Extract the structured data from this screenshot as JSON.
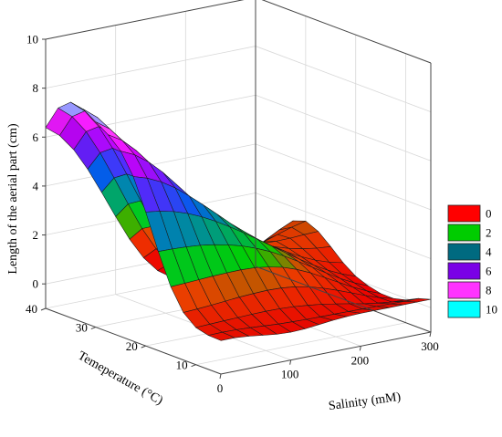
{
  "chart_data": {
    "type": "surface3d",
    "title": "",
    "axes": {
      "x": {
        "label": "Salinity (mM)",
        "ticks": [
          "0",
          "100",
          "200",
          "300"
        ],
        "range": [
          0,
          300
        ]
      },
      "y": {
        "label": "Temeperature (°C)",
        "ticks": [
          "10",
          "20",
          "30",
          "40"
        ],
        "range": [
          5,
          40
        ]
      },
      "z": {
        "label": "Length of the aerial part (cm)",
        "ticks": [
          "0",
          "2",
          "4",
          "6",
          "8",
          "10"
        ],
        "range": [
          -1,
          10
        ]
      }
    },
    "grid": true,
    "legend": {
      "placement": "right",
      "entries": [
        {
          "label": "0",
          "color": "#ff0000"
        },
        {
          "label": "2",
          "color": "#00cc00"
        },
        {
          "label": "4",
          "color": "#006a80"
        },
        {
          "label": "6",
          "color": "#7a00e6"
        },
        {
          "label": "8",
          "color": "#ff33ff"
        },
        {
          "label": "10",
          "color": "#00ffff"
        }
      ]
    },
    "surface": {
      "salinity_mM": [
        0,
        20,
        40,
        60,
        80,
        100,
        120,
        140,
        160,
        180,
        200,
        220,
        240,
        260,
        280,
        300
      ],
      "temperature_C": [
        5,
        7.5,
        10,
        12.5,
        15,
        17.5,
        20,
        22.5,
        25,
        27.5,
        30,
        32.5,
        35,
        37.5,
        40
      ],
      "length_cm": [
        [
          0.37,
          0.37,
          0.32,
          0.24,
          0.17,
          0.14,
          0.16,
          0.22,
          0.28,
          0.32,
          0.34,
          0.34,
          0.34,
          0.34,
          0.34,
          0.34
        ],
        [
          0.39,
          0.4,
          0.39,
          0.36,
          0.32,
          0.28,
          0.26,
          0.24,
          0.23,
          0.23,
          0.22,
          0.21,
          0.2,
          0.19,
          0.18,
          0.18
        ],
        [
          0.52,
          0.54,
          0.56,
          0.58,
          0.6,
          0.61,
          0.6,
          0.57,
          0.51,
          0.44,
          0.34,
          0.23,
          0.12,
          0.03,
          -0.04,
          -0.07
        ],
        [
          0.94,
          0.97,
          1.01,
          1.06,
          1.11,
          1.14,
          1.16,
          1.14,
          1.08,
          0.96,
          0.79,
          0.59,
          0.37,
          0.15,
          -0.05,
          -0.2
        ],
        [
          1.8,
          1.83,
          1.86,
          1.89,
          1.91,
          1.92,
          1.89,
          1.81,
          1.68,
          1.48,
          1.22,
          0.92,
          0.61,
          0.3,
          0.03,
          -0.19
        ],
        [
          3.05,
          3.04,
          3.01,
          2.96,
          2.87,
          2.75,
          2.59,
          2.38,
          2.13,
          1.83,
          1.5,
          1.15,
          0.8,
          0.46,
          0.17,
          -0.07
        ],
        [
          4.47,
          4.39,
          4.26,
          4.07,
          3.82,
          3.52,
          3.18,
          2.82,
          2.44,
          2.05,
          1.66,
          1.28,
          0.93,
          0.61,
          0.34,
          0.13
        ],
        [
          5.73,
          5.55,
          5.28,
          4.92,
          4.48,
          4.0,
          3.5,
          3.0,
          2.54,
          2.11,
          1.72,
          1.38,
          1.08,
          0.83,
          0.63,
          0.49
        ],
        [
          6.58,
          6.31,
          5.9,
          5.37,
          4.75,
          4.1,
          3.47,
          2.89,
          2.39,
          1.98,
          1.66,
          1.41,
          1.23,
          1.1,
          1.01,
          0.96
        ],
        [
          7.05,
          6.71,
          6.18,
          5.48,
          4.68,
          3.86,
          3.09,
          2.44,
          1.95,
          1.62,
          1.43,
          1.35,
          1.33,
          1.34,
          1.37,
          1.39
        ],
        [
          7.39,
          6.99,
          6.35,
          5.51,
          4.53,
          3.54,
          2.62,
          1.86,
          1.32,
          1.02,
          0.92,
          0.97,
          1.11,
          1.3,
          1.48,
          1.62
        ],
        [
          7.72,
          7.27,
          6.54,
          5.57,
          4.45,
          3.3,
          2.22,
          1.33,
          0.68,
          0.32,
          0.21,
          0.31,
          0.56,
          0.87,
          1.18,
          1.44
        ],
        [
          7.81,
          7.34,
          6.59,
          5.59,
          4.42,
          3.21,
          2.07,
          1.11,
          0.4,
          -0.04,
          -0.23,
          -0.2,
          -0.04,
          0.19,
          0.43,
          0.63
        ],
        [
          7.38,
          6.92,
          6.19,
          5.21,
          4.07,
          2.89,
          1.77,
          0.83,
          0.13,
          -0.3,
          -0.5,
          -0.52,
          -0.42,
          -0.28,
          -0.15,
          -0.06
        ],
        [
          6.39,
          5.95,
          5.26,
          4.35,
          3.29,
          2.18,
          1.14,
          0.27,
          -0.37,
          -0.76,
          -0.91,
          -0.89,
          -0.76,
          -0.58,
          -0.42,
          -0.31
        ]
      ]
    }
  }
}
